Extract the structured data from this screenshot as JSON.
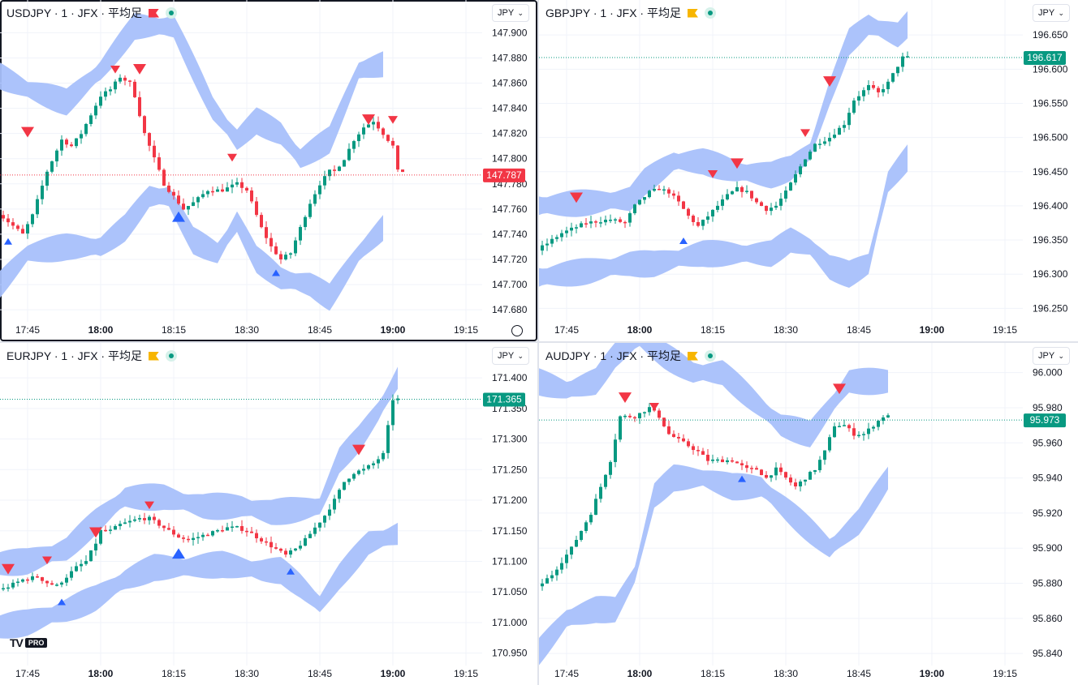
{
  "colors": {
    "up": "#089981",
    "down": "#f23645",
    "band": "#a8c0fb",
    "grid": "#f0f3fa",
    "marker_up": "#2962ff",
    "marker_down": "#f23645",
    "text": "#131722"
  },
  "icons": {
    "flag": "flag-icon",
    "status": "live-status-dot",
    "chevron": "chevron-down-icon",
    "settings": "settings-icon",
    "logo": "tradingview-logo"
  },
  "panes": [
    {
      "id": "usdjpy",
      "legend": "USDJPY · 1 · JFX · 平均足",
      "flag_color": "#f23645",
      "currency": "JPY",
      "price_label": "147.787",
      "price": 147.787,
      "price_color": "#f23645",
      "yticks": [
        "147.900",
        "147.880",
        "147.860",
        "147.840",
        "147.820",
        "147.800",
        "147.780",
        "147.760",
        "147.740",
        "147.720",
        "147.700",
        "147.680"
      ],
      "xticks": [
        "17:45",
        "18:00",
        "18:15",
        "18:30",
        "18:45",
        "19:00",
        "19:15"
      ],
      "active": true,
      "settings": true
    },
    {
      "id": "gbpjpy",
      "legend": "GBPJPY · 1 · JFX · 平均足",
      "flag_color": "#f7b500",
      "currency": "JPY",
      "price_label": "196.617",
      "price": 196.617,
      "price_color": "#089981",
      "yticks": [
        "196.650",
        "196.600",
        "196.550",
        "196.500",
        "196.450",
        "196.400",
        "196.350",
        "196.300",
        "196.250"
      ],
      "xticks": [
        "17:45",
        "18:00",
        "18:15",
        "18:30",
        "18:45",
        "19:00",
        "19:15"
      ]
    },
    {
      "id": "eurjpy",
      "legend": "EURJPY · 1 · JFX · 平均足",
      "flag_color": "#f7b500",
      "currency": "JPY",
      "price_label": "171.365",
      "price": 171.365,
      "price_color": "#089981",
      "yticks": [
        "171.400",
        "171.350",
        "171.300",
        "171.250",
        "171.200",
        "171.150",
        "171.100",
        "171.050",
        "171.000",
        "170.950"
      ],
      "xticks": [
        "17:45",
        "18:00",
        "18:15",
        "18:30",
        "18:45",
        "19:00",
        "19:15"
      ],
      "logo": true
    },
    {
      "id": "audjpy",
      "legend": "AUDJPY · 1 · JFX · 平均足",
      "flag_color": "#f7b500",
      "currency": "JPY",
      "price_label": "95.973",
      "price": 95.973,
      "price_color": "#089981",
      "yticks": [
        "96.000",
        "95.980",
        "95.960",
        "95.940",
        "95.920",
        "95.900",
        "95.880",
        "95.860",
        "95.840"
      ],
      "xticks": [
        "17:45",
        "18:00",
        "18:15",
        "18:30",
        "18:45",
        "19:00",
        "19:15"
      ]
    }
  ],
  "logo": {
    "text": "TV",
    "badge": "PRO"
  },
  "chart_data": [
    {
      "type": "candlestick",
      "title": "USDJPY · 1 · JFX · 平均足",
      "ylim": [
        147.673,
        147.908
      ],
      "xlim_min": [
        -8,
        100
      ],
      "xrange_label": "17:45–19:15",
      "close_path": [
        [
          -6,
          147.76
        ],
        [
          -3,
          147.75
        ],
        [
          0,
          147.74
        ],
        [
          2,
          147.755
        ],
        [
          5,
          147.79
        ],
        [
          8,
          147.815
        ],
        [
          10,
          147.81
        ],
        [
          12,
          147.82
        ],
        [
          14,
          147.835
        ],
        [
          16,
          147.85
        ],
        [
          18,
          147.855
        ],
        [
          20,
          147.865
        ],
        [
          22,
          147.86
        ],
        [
          23,
          147.85
        ],
        [
          25,
          147.82
        ],
        [
          27,
          147.8
        ],
        [
          29,
          147.78
        ],
        [
          31,
          147.77
        ],
        [
          33,
          147.76
        ],
        [
          35,
          147.765
        ],
        [
          38,
          147.775
        ],
        [
          41,
          147.775
        ],
        [
          44,
          147.78
        ],
        [
          46,
          147.775
        ],
        [
          47,
          147.765
        ],
        [
          49,
          147.745
        ],
        [
          51,
          147.73
        ],
        [
          53,
          147.72
        ],
        [
          55,
          147.725
        ],
        [
          57,
          147.745
        ],
        [
          59,
          147.765
        ],
        [
          61,
          147.78
        ],
        [
          63,
          147.79
        ],
        [
          64,
          147.79
        ],
        [
          66,
          147.8
        ],
        [
          68,
          147.815
        ],
        [
          70,
          147.825
        ],
        [
          72,
          147.83
        ],
        [
          74,
          147.82
        ],
        [
          76,
          147.81
        ],
        [
          77,
          147.79
        ]
      ],
      "band_upper": [
        [
          -8,
          147.87
        ],
        [
          0,
          147.855
        ],
        [
          8,
          147.845
        ],
        [
          15,
          147.87
        ],
        [
          22,
          147.905
        ],
        [
          30,
          147.905
        ],
        [
          38,
          147.84
        ],
        [
          43,
          147.815
        ],
        [
          47,
          147.83
        ],
        [
          52,
          147.82
        ],
        [
          56,
          147.8
        ],
        [
          62,
          147.815
        ],
        [
          68,
          147.87
        ],
        [
          73,
          147.875
        ]
      ],
      "band_lower": [
        [
          -8,
          147.69
        ],
        [
          0,
          147.725
        ],
        [
          8,
          147.73
        ],
        [
          15,
          147.73
        ],
        [
          20,
          147.745
        ],
        [
          25,
          147.77
        ],
        [
          29,
          147.77
        ],
        [
          34,
          147.735
        ],
        [
          39,
          147.725
        ],
        [
          43,
          147.75
        ],
        [
          47,
          147.72
        ],
        [
          52,
          147.705
        ],
        [
          58,
          147.7
        ],
        [
          62,
          147.69
        ],
        [
          68,
          147.725
        ],
        [
          73,
          147.745
        ]
      ],
      "markers_sell": [
        [
          0,
          147.82
        ],
        [
          18,
          147.87
        ],
        [
          23,
          147.87
        ],
        [
          42,
          147.8
        ],
        [
          70,
          147.83
        ],
        [
          75,
          147.83
        ]
      ],
      "markers_buy": [
        [
          -4,
          147.735
        ],
        [
          31,
          147.755
        ],
        [
          51,
          147.71
        ]
      ]
    },
    {
      "type": "candlestick",
      "title": "GBPJPY · 1 · JFX · 平均足",
      "ylim": [
        196.235,
        196.668
      ],
      "xrange_label": "17:45–19:15",
      "close_path": [
        [
          -6,
          196.33
        ],
        [
          0,
          196.36
        ],
        [
          5,
          196.375
        ],
        [
          10,
          196.38
        ],
        [
          13,
          196.375
        ],
        [
          15,
          196.4
        ],
        [
          18,
          196.42
        ],
        [
          20,
          196.425
        ],
        [
          22,
          196.42
        ],
        [
          24,
          196.405
        ],
        [
          26,
          196.385
        ],
        [
          28,
          196.37
        ],
        [
          30,
          196.385
        ],
        [
          32,
          196.4
        ],
        [
          34,
          196.415
        ],
        [
          36,
          196.425
        ],
        [
          38,
          196.42
        ],
        [
          40,
          196.405
        ],
        [
          42,
          196.395
        ],
        [
          44,
          196.4
        ],
        [
          46,
          196.42
        ],
        [
          48,
          196.445
        ],
        [
          50,
          196.47
        ],
        [
          52,
          196.49
        ],
        [
          55,
          196.5
        ],
        [
          58,
          196.52
        ],
        [
          60,
          196.555
        ],
        [
          63,
          196.575
        ],
        [
          65,
          196.565
        ],
        [
          67,
          196.58
        ],
        [
          69,
          196.605
        ],
        [
          70,
          196.617
        ]
      ],
      "band_upper": [
        [
          -6,
          196.4
        ],
        [
          5,
          196.405
        ],
        [
          13,
          196.41
        ],
        [
          16,
          196.435
        ],
        [
          22,
          196.465
        ],
        [
          28,
          196.465
        ],
        [
          35,
          196.45
        ],
        [
          42,
          196.445
        ],
        [
          46,
          196.455
        ],
        [
          50,
          196.48
        ],
        [
          54,
          196.565
        ],
        [
          58,
          196.64
        ],
        [
          62,
          196.665
        ],
        [
          68,
          196.65
        ],
        [
          70,
          196.665
        ]
      ],
      "band_lower": [
        [
          -6,
          196.295
        ],
        [
          5,
          196.305
        ],
        [
          13,
          196.315
        ],
        [
          18,
          196.315
        ],
        [
          24,
          196.325
        ],
        [
          28,
          196.33
        ],
        [
          35,
          196.33
        ],
        [
          42,
          196.33
        ],
        [
          46,
          196.35
        ],
        [
          50,
          196.34
        ],
        [
          54,
          196.31
        ],
        [
          58,
          196.3
        ],
        [
          62,
          196.315
        ],
        [
          66,
          196.435
        ],
        [
          70,
          196.47
        ]
      ],
      "markers_sell": [
        [
          2,
          196.41
        ],
        [
          30,
          196.445
        ],
        [
          35,
          196.46
        ],
        [
          49,
          196.505
        ],
        [
          54,
          196.58
        ],
        [
          30,
          196.445
        ]
      ],
      "markers_buy": [
        [
          24,
          196.35
        ]
      ]
    },
    {
      "type": "candlestick",
      "title": "EURJPY · 1 · JFX · 平均足",
      "ylim": [
        170.935,
        171.42
      ],
      "xrange_label": "17:45–19:15",
      "close_path": [
        [
          -8,
          171.055
        ],
        [
          -4,
          171.055
        ],
        [
          0,
          171.07
        ],
        [
          3,
          171.075
        ],
        [
          5,
          171.065
        ],
        [
          7,
          171.06
        ],
        [
          9,
          171.075
        ],
        [
          11,
          171.09
        ],
        [
          13,
          171.1
        ],
        [
          15,
          171.13
        ],
        [
          16,
          171.15
        ],
        [
          18,
          171.15
        ],
        [
          20,
          171.16
        ],
        [
          22,
          171.165
        ],
        [
          24,
          171.17
        ],
        [
          26,
          171.17
        ],
        [
          28,
          171.16
        ],
        [
          30,
          171.15
        ],
        [
          32,
          171.14
        ],
        [
          34,
          171.135
        ],
        [
          36,
          171.14
        ],
        [
          38,
          171.145
        ],
        [
          40,
          171.15
        ],
        [
          42,
          171.155
        ],
        [
          44,
          171.155
        ],
        [
          46,
          171.15
        ],
        [
          48,
          171.14
        ],
        [
          50,
          171.13
        ],
        [
          52,
          171.12
        ],
        [
          54,
          171.11
        ],
        [
          56,
          171.12
        ],
        [
          58,
          171.135
        ],
        [
          60,
          171.155
        ],
        [
          62,
          171.175
        ],
        [
          64,
          171.2
        ],
        [
          66,
          171.23
        ],
        [
          68,
          171.245
        ],
        [
          70,
          171.25
        ],
        [
          72,
          171.26
        ],
        [
          74,
          171.275
        ],
        [
          76,
          171.365
        ]
      ],
      "band_upper": [
        [
          -8,
          171.095
        ],
        [
          0,
          171.1
        ],
        [
          8,
          171.12
        ],
        [
          14,
          171.165
        ],
        [
          20,
          171.205
        ],
        [
          28,
          171.205
        ],
        [
          36,
          171.19
        ],
        [
          44,
          171.19
        ],
        [
          50,
          171.18
        ],
        [
          56,
          171.185
        ],
        [
          60,
          171.19
        ],
        [
          64,
          171.265
        ],
        [
          68,
          171.3
        ],
        [
          72,
          171.345
        ],
        [
          76,
          171.4
        ]
      ],
      "band_lower": [
        [
          -8,
          170.99
        ],
        [
          0,
          171.0
        ],
        [
          8,
          171.02
        ],
        [
          14,
          171.04
        ],
        [
          20,
          171.07
        ],
        [
          26,
          171.09
        ],
        [
          32,
          171.09
        ],
        [
          40,
          171.095
        ],
        [
          48,
          171.085
        ],
        [
          52,
          171.085
        ],
        [
          56,
          171.06
        ],
        [
          60,
          171.03
        ],
        [
          64,
          171.075
        ],
        [
          70,
          171.13
        ],
        [
          76,
          171.145
        ]
      ],
      "markers_sell": [
        [
          -4,
          171.085
        ],
        [
          4,
          171.1
        ],
        [
          14,
          171.145
        ],
        [
          25,
          171.19
        ],
        [
          68,
          171.28
        ]
      ],
      "markers_buy": [
        [
          7,
          171.035
        ],
        [
          31,
          171.115
        ],
        [
          54,
          171.085
        ]
      ]
    },
    {
      "type": "candlestick",
      "title": "AUDJPY · 1 · JFX · 平均足",
      "ylim": [
        95.835,
        96.004
      ],
      "xrange_label": "17:45–19:15",
      "close_path": [
        [
          -6,
          95.875
        ],
        [
          -2,
          95.885
        ],
        [
          2,
          95.9
        ],
        [
          6,
          95.92
        ],
        [
          10,
          95.95
        ],
        [
          12,
          95.975
        ],
        [
          15,
          95.975
        ],
        [
          18,
          95.98
        ],
        [
          20,
          95.975
        ],
        [
          22,
          95.965
        ],
        [
          25,
          95.96
        ],
        [
          28,
          95.955
        ],
        [
          30,
          95.95
        ],
        [
          33,
          95.95
        ],
        [
          35,
          95.95
        ],
        [
          38,
          95.945
        ],
        [
          40,
          95.945
        ],
        [
          42,
          95.94
        ],
        [
          44,
          95.945
        ],
        [
          46,
          95.94
        ],
        [
          48,
          95.935
        ],
        [
          50,
          95.94
        ],
        [
          52,
          95.945
        ],
        [
          54,
          95.955
        ],
        [
          56,
          95.97
        ],
        [
          58,
          95.97
        ],
        [
          60,
          95.965
        ],
        [
          62,
          95.965
        ],
        [
          64,
          95.97
        ],
        [
          66,
          95.975
        ]
      ],
      "band_upper": [
        [
          -6,
          95.995
        ],
        [
          0,
          95.99
        ],
        [
          6,
          95.995
        ],
        [
          10,
          96.01
        ],
        [
          15,
          96.02
        ],
        [
          20,
          96.01
        ],
        [
          26,
          96.0
        ],
        [
          32,
          96.0
        ],
        [
          38,
          95.985
        ],
        [
          44,
          95.97
        ],
        [
          50,
          95.965
        ],
        [
          54,
          95.98
        ],
        [
          58,
          95.995
        ],
        [
          66,
          95.995
        ]
      ],
      "band_lower": [
        [
          -6,
          95.84
        ],
        [
          0,
          95.86
        ],
        [
          6,
          95.865
        ],
        [
          10,
          95.865
        ],
        [
          14,
          95.885
        ],
        [
          18,
          95.93
        ],
        [
          22,
          95.94
        ],
        [
          28,
          95.94
        ],
        [
          34,
          95.935
        ],
        [
          40,
          95.935
        ],
        [
          46,
          95.92
        ],
        [
          50,
          95.91
        ],
        [
          54,
          95.9
        ],
        [
          60,
          95.915
        ],
        [
          66,
          95.94
        ]
      ],
      "markers_sell": [
        [
          12,
          95.985
        ],
        [
          18,
          95.98
        ],
        [
          56,
          95.99
        ]
      ],
      "markers_buy": [
        [
          36,
          95.94
        ]
      ]
    }
  ]
}
